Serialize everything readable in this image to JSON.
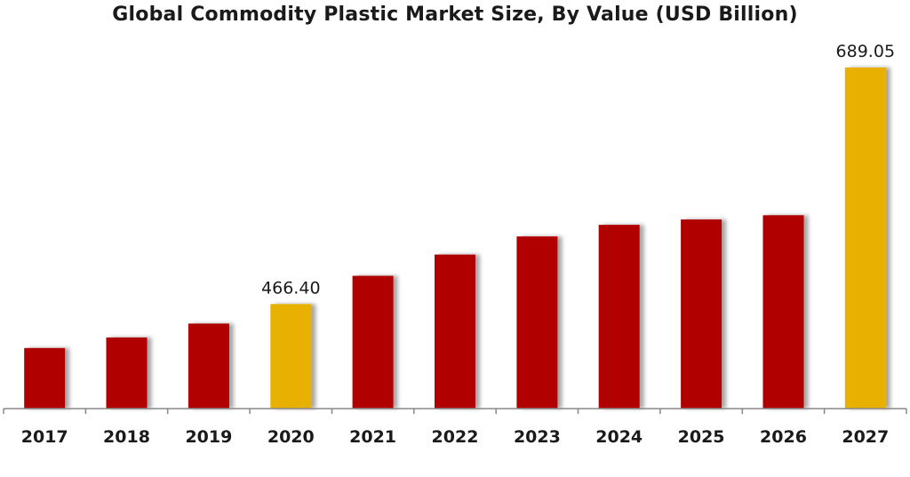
{
  "chart_data": {
    "type": "bar",
    "title": "Global Commodity Plastic Market Size, By Value (USD Billion)",
    "xlabel": "",
    "ylabel": "",
    "categories": [
      "2017",
      "2018",
      "2019",
      "2020",
      "2021",
      "2022",
      "2023",
      "2024",
      "2025",
      "2026",
      "2027"
    ],
    "values": [
      425,
      435,
      448,
      466.4,
      493,
      513,
      530,
      541,
      546,
      550,
      689.05
    ],
    "highlighted": [
      "2020",
      "2027"
    ],
    "data_labels": {
      "2020": "466.40",
      "2027": "689.05"
    },
    "ylim": [
      0,
      689.05
    ],
    "grid": false,
    "colors": {
      "bar": "#B00000",
      "highlight": "#E8B000",
      "axis": "#888888",
      "text": "#1a1a1a"
    }
  }
}
